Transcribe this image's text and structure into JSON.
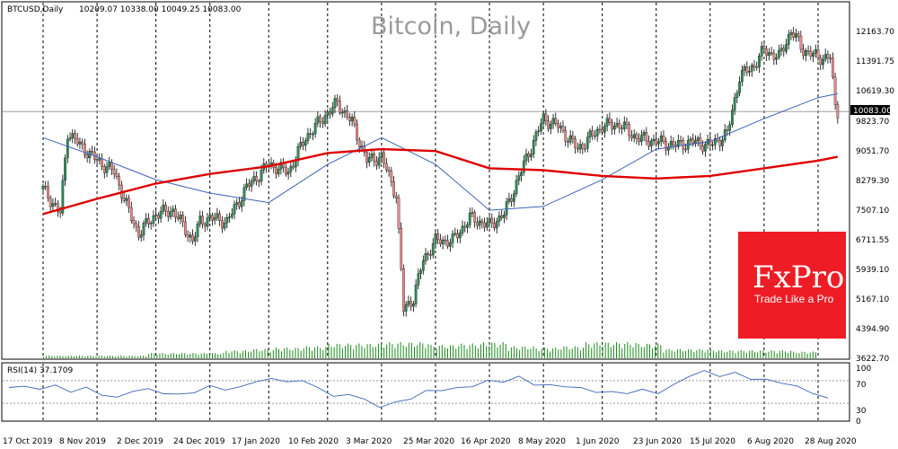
{
  "header": {
    "symbol": "BTCUSD,Daily",
    "ohlc": "10209.07 10338.00 10049.25 10083.00"
  },
  "watermark": "Bitcoin, Daily",
  "brand": {
    "name": "FxPro",
    "tagline": "Trade Like a Pro",
    "color": "#ee1c25"
  },
  "rsi_panel": {
    "label": "RSI(14) 37.1709"
  },
  "chart_data": [
    {
      "type": "candlestick",
      "title": "Bitcoin, Daily",
      "ylim": [
        3622.7,
        12935.7
      ],
      "y_ticks": [
        "12163.70",
        "11391.75",
        "10619.30",
        "9823.70",
        "9051.70",
        "8279.30",
        "7507.10",
        "6711.55",
        "5939.10",
        "5167.10",
        "4394.90",
        "3622.70"
      ],
      "x_labels": [
        "17 Oct 2019",
        "8 Nov 2019",
        "2 Dec 2019",
        "24 Dec 2019",
        "17 Jan 2020",
        "10 Feb 2020",
        "3 Mar 2020",
        "25 Mar 2020",
        "16 Apr 2020",
        "8 May 2020",
        "1 Jun 2020",
        "23 Jun 2020",
        "15 Jul 2020",
        "6 Aug 2020",
        "28 Aug 2020"
      ],
      "last_price": "10083.00",
      "grid": "vertical dashed",
      "series": [
        {
          "kind": "close",
          "points": [
            [
              "17 Oct 2019",
              8050
            ],
            [
              "24 Oct 2019",
              7420
            ],
            [
              "27 Oct 2019",
              9550
            ],
            [
              "1 Nov 2019",
              9200
            ],
            [
              "8 Nov 2019",
              8800
            ],
            [
              "15 Nov 2019",
              8500
            ],
            [
              "22 Nov 2019",
              7300
            ],
            [
              "25 Nov 2019",
              6900
            ],
            [
              "2 Dec 2019",
              7400
            ],
            [
              "9 Dec 2019",
              7500
            ],
            [
              "17 Dec 2019",
              6700
            ],
            [
              "20 Dec 2019",
              7200
            ],
            [
              "24 Dec 2019",
              7300
            ],
            [
              "31 Dec 2019",
              7200
            ],
            [
              "8 Jan 2020",
              8100
            ],
            [
              "17 Jan 2020",
              8700
            ],
            [
              "25 Jan 2020",
              8500
            ],
            [
              "1 Feb 2020",
              9400
            ],
            [
              "10 Feb 2020",
              10050
            ],
            [
              "14 Feb 2020",
              10300
            ],
            [
              "20 Feb 2020",
              9800
            ],
            [
              "26 Feb 2020",
              8800
            ],
            [
              "3 Mar 2020",
              8900
            ],
            [
              "9 Mar 2020",
              7900
            ],
            [
              "12 Mar 2020",
              4900
            ],
            [
              "16 Mar 2020",
              5200
            ],
            [
              "20 Mar 2020",
              6200
            ],
            [
              "25 Mar 2020",
              6700
            ],
            [
              "1 Apr 2020",
              6700
            ],
            [
              "8 Apr 2020",
              7300
            ],
            [
              "16 Apr 2020",
              7100
            ],
            [
              "22 Apr 2020",
              7400
            ],
            [
              "30 Apr 2020",
              8700
            ],
            [
              "8 May 2020",
              9900
            ],
            [
              "14 May 2020",
              9700
            ],
            [
              "22 May 2020",
              9100
            ],
            [
              "1 Jun 2020",
              9700
            ],
            [
              "8 Jun 2020",
              9750
            ],
            [
              "15 Jun 2020",
              9400
            ],
            [
              "23 Jun 2020",
              9300
            ],
            [
              "1 Jul 2020",
              9200
            ],
            [
              "8 Jul 2020",
              9300
            ],
            [
              "15 Jul 2020",
              9200
            ],
            [
              "22 Jul 2020",
              9500
            ],
            [
              "27 Jul 2020",
              11000
            ],
            [
              "2 Aug 2020",
              11300
            ],
            [
              "6 Aug 2020",
              11700
            ],
            [
              "12 Aug 2020",
              11500
            ],
            [
              "17 Aug 2020",
              12200
            ],
            [
              "22 Aug 2020",
              11700
            ],
            [
              "28 Aug 2020",
              11500
            ],
            [
              "2 Sep 2020",
              11500
            ],
            [
              "4 Sep 2020",
              10200
            ],
            [
              "5 Sep 2020",
              10083
            ]
          ],
          "color": "#2e8b57"
        },
        {
          "kind": "moving_average_fast",
          "points": [
            [
              "17 Oct 2019",
              9400
            ],
            [
              "8 Nov 2019",
              8900
            ],
            [
              "2 Dec 2019",
              8300
            ],
            [
              "24 Dec 2019",
              7950
            ],
            [
              "17 Jan 2020",
              7700
            ],
            [
              "10 Feb 2020",
              8700
            ],
            [
              "3 Mar 2020",
              9400
            ],
            [
              "25 Mar 2020",
              8700
            ],
            [
              "16 Apr 2020",
              7500
            ],
            [
              "8 May 2020",
              7600
            ],
            [
              "1 Jun 2020",
              8300
            ],
            [
              "23 Jun 2020",
              9100
            ],
            [
              "15 Jul 2020",
              9300
            ],
            [
              "6 Aug 2020",
              9900
            ],
            [
              "28 Aug 2020",
              10450
            ],
            [
              "5 Sep 2020",
              10550
            ]
          ],
          "color": "#3d63b8"
        },
        {
          "kind": "moving_average_slow",
          "points": [
            [
              "17 Oct 2019",
              7400
            ],
            [
              "8 Nov 2019",
              7800
            ],
            [
              "2 Dec 2019",
              8200
            ],
            [
              "24 Dec 2019",
              8450
            ],
            [
              "17 Jan 2020",
              8650
            ],
            [
              "10 Feb 2020",
              9000
            ],
            [
              "3 Mar 2020",
              9100
            ],
            [
              "25 Mar 2020",
              9050
            ],
            [
              "16 Apr 2020",
              8600
            ],
            [
              "8 May 2020",
              8550
            ],
            [
              "1 Jun 2020",
              8400
            ],
            [
              "23 Jun 2020",
              8330
            ],
            [
              "15 Jul 2020",
              8400
            ],
            [
              "6 Aug 2020",
              8600
            ],
            [
              "28 Aug 2020",
              8800
            ],
            [
              "5 Sep 2020",
              8900
            ]
          ],
          "color": "#dd0000"
        },
        {
          "kind": "volume",
          "values_relative": [
            0.1,
            0.1,
            0.1,
            0.1,
            0.2,
            0.2,
            0.2,
            0.3,
            0.35,
            0.4,
            0.45,
            0.55,
            0.55,
            0.6,
            0.6,
            0.5,
            0.55,
            0.6,
            0.45,
            0.4,
            0.45,
            0.6,
            0.6,
            0.55,
            0.35,
            0.35,
            0.3,
            0.3,
            0.3,
            0.25
          ],
          "color": "#1a8a1a"
        }
      ]
    },
    {
      "type": "line",
      "title": "RSI(14) 37.1709",
      "ylim": [
        0,
        100
      ],
      "y_ticks": [
        "100",
        "70",
        "30",
        "0"
      ],
      "levels": [
        70,
        30
      ],
      "values": [
        58,
        60,
        55,
        62,
        50,
        58,
        45,
        40,
        52,
        55,
        48,
        45,
        50,
        60,
        55,
        58,
        70,
        72,
        70,
        68,
        60,
        40,
        48,
        35,
        25,
        30,
        40,
        50,
        55,
        55,
        62,
        68,
        70,
        75,
        65,
        60,
        62,
        55,
        52,
        48,
        50,
        52,
        50,
        60,
        80,
        85,
        80,
        82,
        75,
        70,
        68,
        58,
        50,
        37
      ],
      "color": "#3d63b8"
    }
  ]
}
